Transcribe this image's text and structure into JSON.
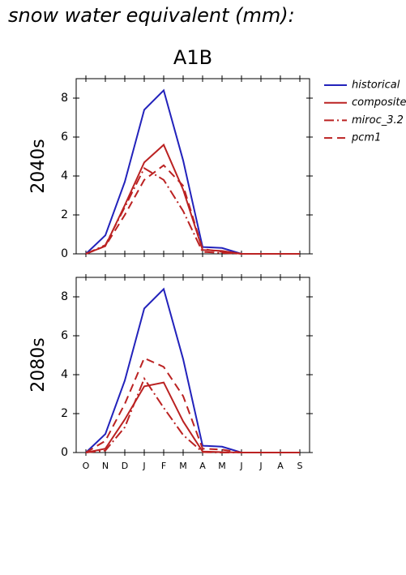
{
  "title": "snow water equivalent (mm):",
  "chart_data": {
    "type": "line",
    "title": "A1B",
    "categories": [
      "O",
      "N",
      "D",
      "J",
      "F",
      "M",
      "A",
      "M",
      "J",
      "J",
      "A",
      "S"
    ],
    "series": [
      {
        "name": "historical",
        "color": "#2222bb",
        "dash": "solid"
      },
      {
        "name": "composite",
        "color": "#bb2222",
        "dash": "solid"
      },
      {
        "name": "miroc_3.2",
        "color": "#bb2222",
        "dash": "dashdot"
      },
      {
        "name": "pcm1",
        "color": "#bb2222",
        "dash": "dashed"
      }
    ],
    "ylim": [
      0,
      9
    ],
    "yticks": [
      0,
      2,
      4,
      6,
      8
    ],
    "legend": "right",
    "panels": [
      {
        "ylabel": "2040s",
        "values": [
          [
            0,
            0.95,
            3.7,
            7.4,
            8.4,
            4.8,
            0.35,
            0.3,
            0,
            0,
            0,
            0
          ],
          [
            0,
            0.4,
            2.5,
            4.7,
            5.6,
            3.3,
            0.2,
            0.15,
            0,
            0,
            0,
            0
          ],
          [
            0,
            0.45,
            2.4,
            4.4,
            3.8,
            2.2,
            0.1,
            0.05,
            0,
            0,
            0,
            0
          ],
          [
            0,
            0.4,
            2.0,
            3.8,
            4.55,
            3.5,
            0.25,
            0.1,
            0,
            0,
            0,
            0
          ]
        ]
      },
      {
        "ylabel": "2080s",
        "values": [
          [
            0,
            0.95,
            3.7,
            7.4,
            8.4,
            4.8,
            0.35,
            0.3,
            0,
            0,
            0,
            0
          ],
          [
            0,
            0.2,
            1.7,
            3.4,
            3.6,
            1.6,
            0.05,
            0.02,
            0,
            0,
            0,
            0
          ],
          [
            0,
            0.1,
            1.3,
            3.8,
            2.3,
            0.9,
            0.02,
            0,
            0,
            0,
            0,
            0
          ],
          [
            0,
            0.6,
            2.5,
            4.85,
            4.4,
            2.9,
            0.2,
            0.15,
            0,
            0,
            0,
            0
          ]
        ]
      }
    ]
  }
}
